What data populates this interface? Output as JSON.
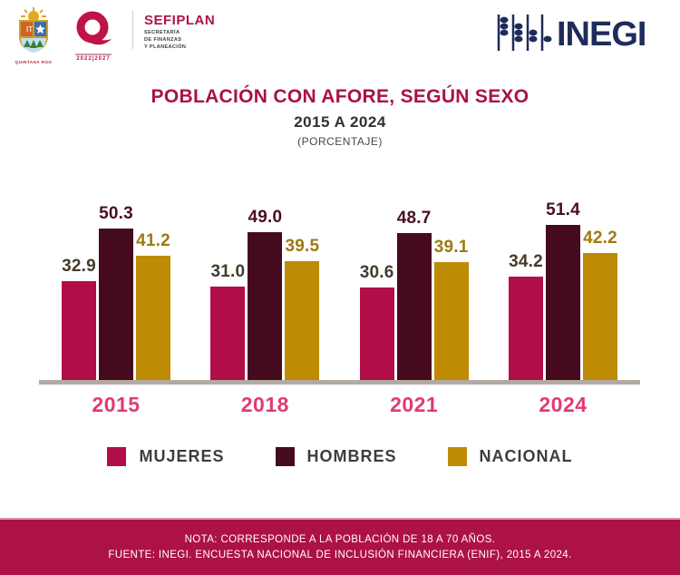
{
  "header": {
    "coat_caption": "QUINTANA ROO",
    "q_logo_years": "2022|2027",
    "sefiplan": {
      "name": "SEFIPLAN",
      "line1": "SECRETARÍA",
      "line2": "DE FINANZAS",
      "line3": "Y PLANEACIÓN"
    },
    "inegi_wordmark": "INEGI"
  },
  "title": {
    "main": "POBLACIÓN CON AFORE, SEGÚN SEXO",
    "subtitle": "2015 A 2024",
    "unit": "(PORCENTAJE)"
  },
  "chart_data": {
    "type": "bar",
    "categories": [
      "2015",
      "2018",
      "2021",
      "2024"
    ],
    "series": [
      {
        "name": "MUJERES",
        "color": "#b00d49",
        "label_color": "#463a2c",
        "values": [
          32.9,
          31.0,
          30.6,
          34.2
        ]
      },
      {
        "name": "HOMBRES",
        "color": "#460a1e",
        "label_color": "#4a0e24",
        "values": [
          50.3,
          49.0,
          48.7,
          51.4
        ]
      },
      {
        "name": "NACIONAL",
        "color": "#bd8b04",
        "label_color": "#9c7a10",
        "values": [
          41.2,
          39.5,
          39.1,
          42.2
        ]
      }
    ],
    "title": "POBLACIÓN CON AFORE, SEGÚN SEXO",
    "subtitle": "2015 A 2024",
    "ylabel": "PORCENTAJE",
    "ylim": [
      0,
      60
    ],
    "grid": false,
    "legend_position": "bottom",
    "value_labels": true
  },
  "footer": {
    "note": "NOTA: CORRESPONDE A LA POBLACIÓN DE 18 A 70 AÑOS.",
    "source": "FUENTE: INEGI. ENCUESTA NACIONAL DE INCLUSIÓN FINANCIERA (ENIF), 2015 A 2024."
  },
  "colors": {
    "title_crimson": "#a91245",
    "year_pink": "#e23a72",
    "axis_gray": "#b2aba3",
    "footer_bg": "#ad1244",
    "inegi_navy": "#1e2b5b",
    "legend_text": "#3d3d3d"
  }
}
